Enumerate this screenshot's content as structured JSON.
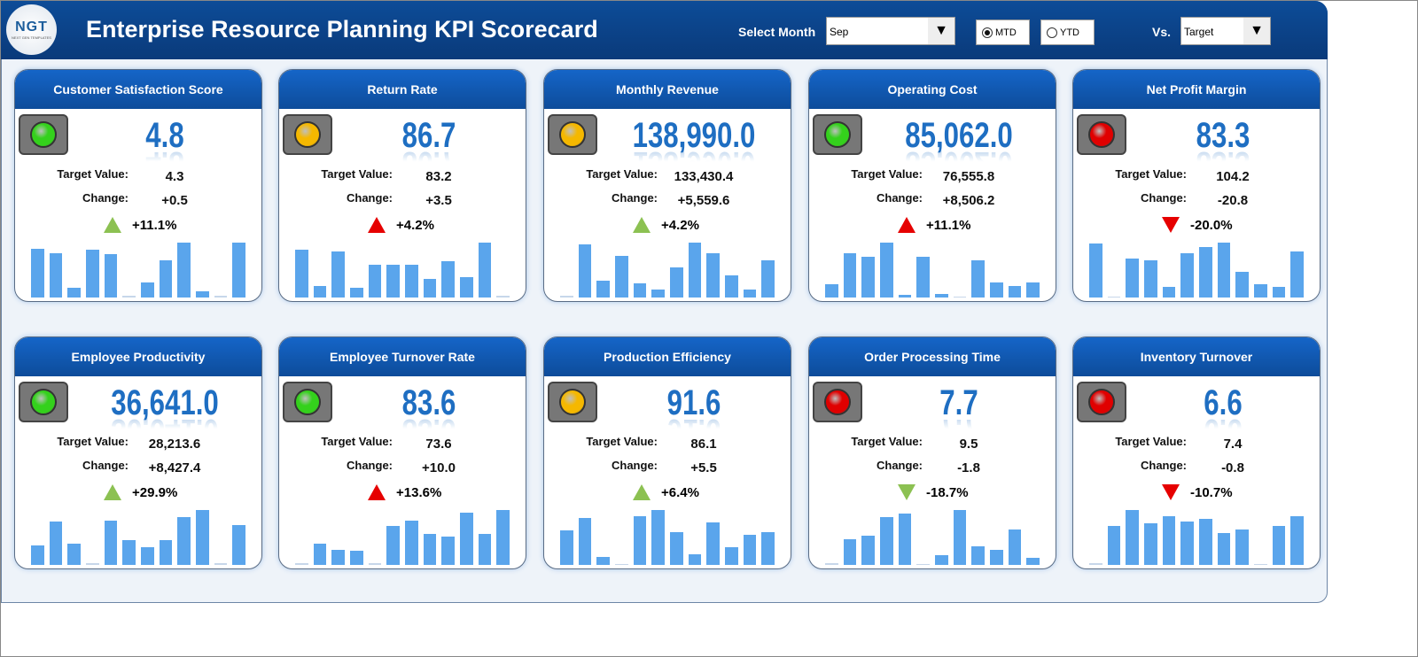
{
  "header": {
    "logo_text": "NGT",
    "logo_sub": "NEXT GEN TEMPLATES",
    "title": "Enterprise Resource Planning KPI Scorecard",
    "select_month_label": "Select Month",
    "month": "Sep",
    "mtd_label": "MTD",
    "ytd_label": "YTD",
    "mode_selected": "MTD",
    "vs_label": "Vs.",
    "vs_value": "Target"
  },
  "colors": {
    "green_light": "#34d11c",
    "yellow_light": "#f5b800",
    "red_light": "#e00000",
    "up_good": "#8cc152",
    "bad": "#e60000",
    "bar": "#5aa5ec"
  },
  "labels": {
    "target": "Target Value:",
    "change": "Change:"
  },
  "cards": [
    {
      "title": "Customer Satisfaction Score",
      "value": "4.8",
      "target": "4.3",
      "change": "+0.5",
      "pct": "+11.1%",
      "light": "green",
      "arrow": "up",
      "arrow_color": "green",
      "trend": [
        50,
        45,
        10,
        49,
        44,
        2,
        15,
        38,
        56,
        6,
        2,
        56
      ]
    },
    {
      "title": "Return Rate",
      "value": "86.7",
      "target": "83.2",
      "change": "+3.5",
      "pct": "+4.2%",
      "light": "yellow",
      "arrow": "up",
      "arrow_color": "red",
      "trend": [
        49,
        12,
        47,
        10,
        33,
        33,
        33,
        19,
        37,
        21,
        56,
        2
      ]
    },
    {
      "title": "Monthly Revenue",
      "value": "138,990.0",
      "target": "133,430.4",
      "change": "+5,559.6",
      "pct": "+4.2%",
      "light": "yellow",
      "arrow": "up",
      "arrow_color": "green",
      "trend": [
        2,
        56,
        18,
        44,
        15,
        8,
        32,
        58,
        47,
        23,
        8,
        39
      ]
    },
    {
      "title": "Operating Cost",
      "value": "85,062.0",
      "target": "76,555.8",
      "change": "+8,506.2",
      "pct": "+11.1%",
      "light": "green",
      "arrow": "up",
      "arrow_color": "red",
      "trend": [
        14,
        45,
        42,
        56,
        3,
        42,
        4,
        1,
        38,
        15,
        12,
        15
      ]
    },
    {
      "title": "Net Profit Margin",
      "value": "83.3",
      "target": "104.2",
      "change": "-20.8",
      "pct": "-20.0%",
      "light": "red",
      "arrow": "down",
      "arrow_color": "red",
      "trend": [
        57,
        1,
        41,
        39,
        11,
        47,
        53,
        58,
        27,
        14,
        11,
        49
      ]
    },
    {
      "title": "Employee Productivity",
      "value": "36,641.0",
      "target": "28,213.6",
      "change": "+8,427.4",
      "pct": "+29.9%",
      "light": "green",
      "arrow": "up",
      "arrow_color": "green",
      "trend": [
        20,
        45,
        22,
        2,
        46,
        26,
        18,
        26,
        50,
        57,
        2,
        41
      ]
    },
    {
      "title": "Employee Turnover Rate",
      "value": "83.6",
      "target": "73.6",
      "change": "+10.0",
      "pct": "+13.6%",
      "light": "green",
      "arrow": "up",
      "arrow_color": "red",
      "trend": [
        2,
        22,
        16,
        15,
        2,
        41,
        47,
        33,
        30,
        55,
        33,
        58
      ]
    },
    {
      "title": "Production Efficiency",
      "value": "91.6",
      "target": "86.1",
      "change": "+5.5",
      "pct": "+6.4%",
      "light": "yellow",
      "arrow": "up",
      "arrow_color": "green",
      "trend": [
        35,
        48,
        8,
        1,
        50,
        56,
        33,
        11,
        43,
        18,
        31,
        33
      ]
    },
    {
      "title": "Order Processing Time",
      "value": "7.7",
      "target": "9.5",
      "change": "-1.8",
      "pct": "-18.7%",
      "light": "red",
      "arrow": "down",
      "arrow_color": "green",
      "trend": [
        2,
        27,
        30,
        50,
        53,
        0,
        10,
        57,
        19,
        16,
        37,
        7
      ]
    },
    {
      "title": "Inventory Turnover",
      "value": "6.6",
      "target": "7.4",
      "change": "-0.8",
      "pct": "-10.7%",
      "light": "red",
      "arrow": "down",
      "arrow_color": "red",
      "trend": [
        2,
        41,
        58,
        44,
        51,
        46,
        49,
        34,
        37,
        0,
        41,
        51
      ]
    }
  ]
}
